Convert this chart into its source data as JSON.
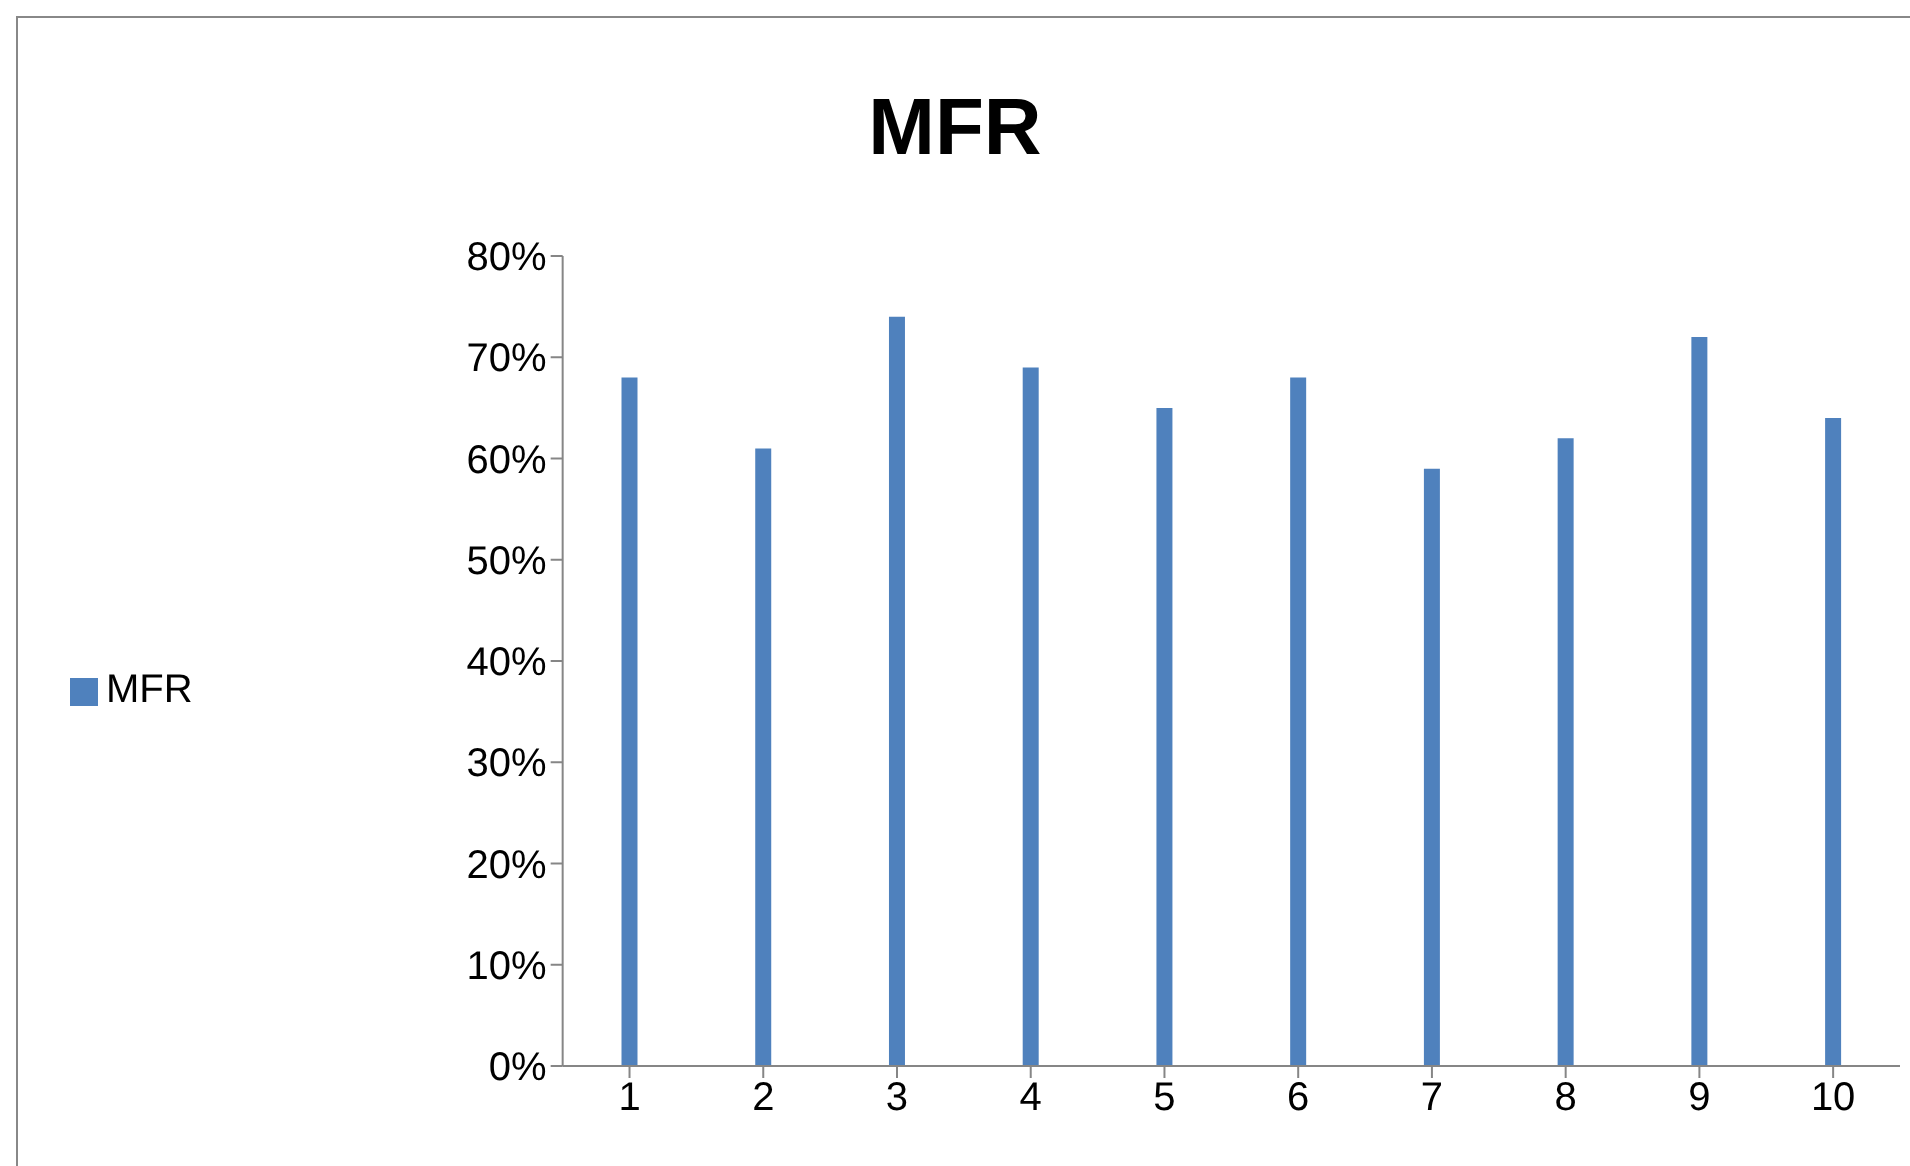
{
  "chart_data": {
    "type": "bar",
    "title": "MFR",
    "categories": [
      "1",
      "2",
      "3",
      "4",
      "5",
      "6",
      "7",
      "8",
      "9",
      "10"
    ],
    "series": [
      {
        "name": "MFR",
        "color": "#4f81bd",
        "values": [
          68,
          61,
          74,
          69,
          65,
          68,
          59,
          62,
          72,
          64
        ]
      }
    ],
    "ylim": [
      0,
      80
    ],
    "yticks": [
      {
        "value": 0,
        "label": "0%"
      },
      {
        "value": 10,
        "label": "10%"
      },
      {
        "value": 20,
        "label": "20%"
      },
      {
        "value": 30,
        "label": "30%"
      },
      {
        "value": 40,
        "label": "40%"
      },
      {
        "value": 50,
        "label": "50%"
      },
      {
        "value": 60,
        "label": "60%"
      },
      {
        "value": 70,
        "label": "70%"
      },
      {
        "value": 80,
        "label": "80%"
      }
    ],
    "grid": false,
    "legend": "left"
  }
}
